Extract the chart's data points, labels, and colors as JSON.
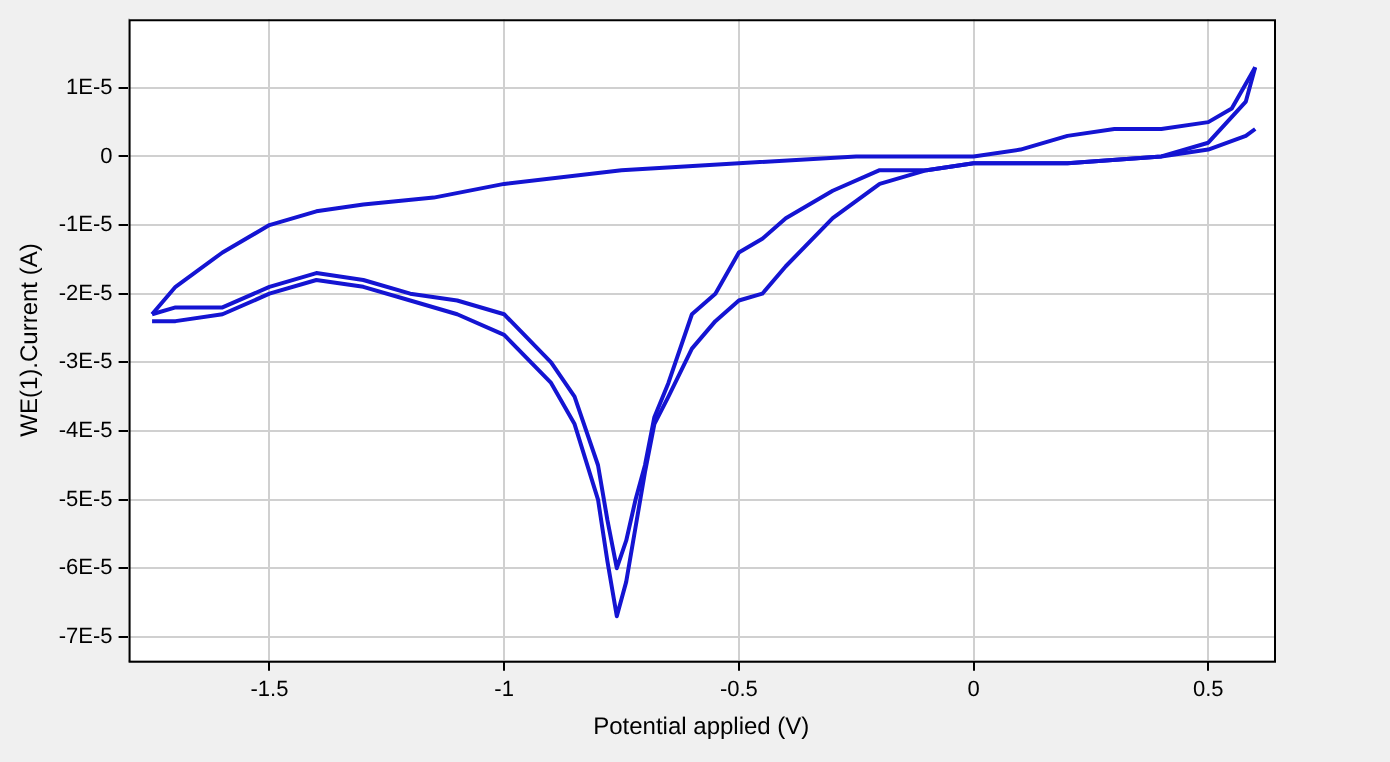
{
  "chart_data": {
    "type": "line",
    "xlabel": "Potential applied (V)",
    "ylabel": "WE(1).Current (A)",
    "xlim": [
      -1.8,
      0.64
    ],
    "xticks": [
      -1.5,
      -1,
      -0.5,
      0,
      0.5
    ],
    "ylim": [
      -7.35e-05,
      2e-05
    ],
    "yticks": [
      {
        "value": 1e-05,
        "label": "1E-5"
      },
      0,
      {
        "value": -1e-05,
        "label": "-1E-5"
      },
      {
        "value": -2e-05,
        "label": "-2E-5"
      },
      {
        "value": -3e-05,
        "label": "-3E-5"
      },
      {
        "value": -4e-05,
        "label": "-4E-5"
      },
      {
        "value": -5e-05,
        "label": "-5E-5"
      },
      {
        "value": -6e-05,
        "label": "-6E-5"
      },
      {
        "value": -7e-05,
        "label": "-7E-5"
      }
    ],
    "grid": true,
    "marker": "none",
    "line_style": "solid",
    "series": [
      {
        "color": "#1414d2",
        "x": [
          0.6,
          0.55,
          0.5,
          0.4,
          0.3,
          0.2,
          0.1,
          0,
          -0.25,
          -0.5,
          -0.75,
          -1,
          -1.15,
          -1.3,
          -1.4,
          -1.5,
          -1.6,
          -1.7,
          -1.75
        ],
        "values": [
          1.3e-05,
          7e-06,
          5e-06,
          4e-06,
          4e-06,
          3e-06,
          1e-06,
          0,
          0,
          -1e-06,
          -2e-06,
          -4e-06,
          -6e-06,
          -7e-06,
          -8e-06,
          -1e-05,
          -1.4e-05,
          -1.9e-05,
          -2.3e-05
        ]
      },
      {
        "color": "#1414d2",
        "x": [
          -1.75,
          -1.7,
          -1.6,
          -1.5,
          -1.4,
          -1.3,
          -1.2,
          -1.1,
          -1.0,
          -0.9,
          -0.85,
          -0.8,
          -0.78,
          -0.76,
          -0.74,
          -0.72,
          -0.7,
          -0.68,
          -0.65,
          -0.6,
          -0.55,
          -0.5,
          -0.45,
          -0.4,
          -0.3,
          -0.2,
          -0.1,
          0,
          0.2,
          0.4,
          0.5,
          0.58,
          0.6
        ],
        "values": [
          -2.3e-05,
          -2.2e-05,
          -2.2e-05,
          -1.9e-05,
          -1.7e-05,
          -1.8e-05,
          -2e-05,
          -2.1e-05,
          -2.3e-05,
          -3e-05,
          -3.5e-05,
          -4.5e-05,
          -5.3e-05,
          -6e-05,
          -5.6e-05,
          -5e-05,
          -4.5e-05,
          -3.8e-05,
          -3.3e-05,
          -2.3e-05,
          -2e-05,
          -1.4e-05,
          -1.2e-05,
          -9e-06,
          -5e-06,
          -2e-06,
          -2e-06,
          -1e-06,
          -1e-06,
          0,
          2e-06,
          8e-06,
          1.3e-05
        ]
      },
      {
        "color": "#1414d2",
        "x": [
          -1.75,
          -1.7,
          -1.6,
          -1.5,
          -1.4,
          -1.3,
          -1.2,
          -1.1,
          -1.0,
          -0.9,
          -0.85,
          -0.8,
          -0.78,
          -0.76,
          -0.74,
          -0.72,
          -0.7,
          -0.68,
          -0.65,
          -0.6,
          -0.55,
          -0.5,
          -0.45,
          -0.4,
          -0.3,
          -0.2,
          -0.1,
          0,
          0.2,
          0.4,
          0.5,
          0.58,
          0.6
        ],
        "values": [
          -2.4e-05,
          -2.4e-05,
          -2.3e-05,
          -2e-05,
          -1.8e-05,
          -1.9e-05,
          -2.1e-05,
          -2.3e-05,
          -2.6e-05,
          -3.3e-05,
          -3.9e-05,
          -5e-05,
          -5.9e-05,
          -6.7e-05,
          -6.2e-05,
          -5.4e-05,
          -4.6e-05,
          -3.9e-05,
          -3.5e-05,
          -2.8e-05,
          -2.4e-05,
          -2.1e-05,
          -2e-05,
          -1.6e-05,
          -9e-06,
          -4e-06,
          -2e-06,
          -1e-06,
          -1e-06,
          0,
          1e-06,
          3e-06,
          4e-06
        ]
      }
    ]
  }
}
